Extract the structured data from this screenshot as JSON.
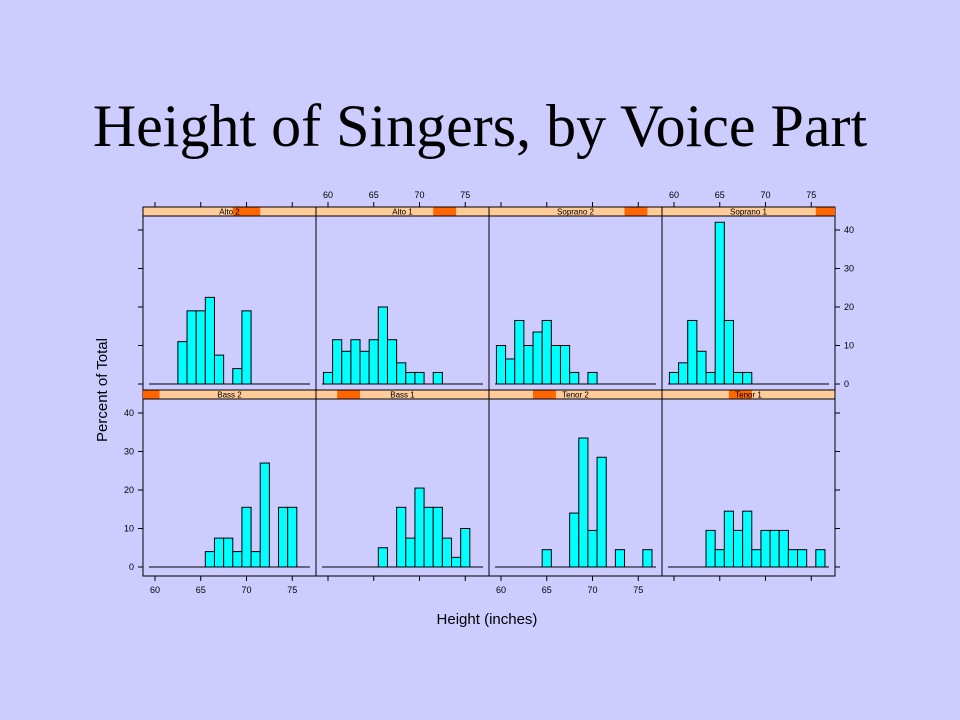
{
  "slide": {
    "title": "Height of Singers, by Voice Part"
  },
  "colors": {
    "background": "#ccccff",
    "bar_fill": "#00ffff",
    "strip_bg": "#ffcc99",
    "strip_marker": "#ff6600"
  },
  "chart_data": {
    "type": "bar",
    "layout": "trellis 4x2 histograms",
    "xlabel": "Height (inches)",
    "ylabel": "Percent of Total",
    "xlim": [
      59,
      77
    ],
    "ylim": [
      0,
      44
    ],
    "xticks": [
      60,
      65,
      70,
      75
    ],
    "yticks": [
      0,
      10,
      20,
      30,
      40
    ],
    "bin_width": 1,
    "panels": [
      {
        "name": "Alto 2",
        "strip_range": [
          68.5,
          71.5
        ],
        "bins": [
          {
            "x": 63,
            "y": 11
          },
          {
            "x": 64,
            "y": 19
          },
          {
            "x": 65,
            "y": 19
          },
          {
            "x": 66,
            "y": 22.5
          },
          {
            "x": 67,
            "y": 7.5
          },
          {
            "x": 69,
            "y": 4
          },
          {
            "x": 70,
            "y": 19
          }
        ]
      },
      {
        "name": "Alto 1",
        "strip_range": [
          71.5,
          74
        ],
        "bins": [
          {
            "x": 60,
            "y": 3
          },
          {
            "x": 61,
            "y": 11.5
          },
          {
            "x": 62,
            "y": 8.5
          },
          {
            "x": 63,
            "y": 11.5
          },
          {
            "x": 64,
            "y": 8.5
          },
          {
            "x": 65,
            "y": 11.5
          },
          {
            "x": 66,
            "y": 20
          },
          {
            "x": 67,
            "y": 11.5
          },
          {
            "x": 68,
            "y": 5.5
          },
          {
            "x": 69,
            "y": 3
          },
          {
            "x": 70,
            "y": 3
          },
          {
            "x": 72,
            "y": 3
          }
        ]
      },
      {
        "name": "Soprano 2",
        "strip_range": [
          73.5,
          76
        ],
        "bins": [
          {
            "x": 60,
            "y": 10
          },
          {
            "x": 61,
            "y": 6.5
          },
          {
            "x": 62,
            "y": 16.5
          },
          {
            "x": 63,
            "y": 10
          },
          {
            "x": 64,
            "y": 13.5
          },
          {
            "x": 65,
            "y": 16.5
          },
          {
            "x": 66,
            "y": 10
          },
          {
            "x": 67,
            "y": 10
          },
          {
            "x": 68,
            "y": 3
          },
          {
            "x": 70,
            "y": 3
          }
        ]
      },
      {
        "name": "Soprano 1",
        "strip_range": [
          75.5,
          78
        ],
        "bins": [
          {
            "x": 60,
            "y": 3
          },
          {
            "x": 61,
            "y": 5.5
          },
          {
            "x": 62,
            "y": 16.5
          },
          {
            "x": 63,
            "y": 8.5
          },
          {
            "x": 64,
            "y": 3
          },
          {
            "x": 65,
            "y": 42
          },
          {
            "x": 66,
            "y": 16.5
          },
          {
            "x": 67,
            "y": 3
          },
          {
            "x": 68,
            "y": 3
          }
        ]
      },
      {
        "name": "Bass 2",
        "strip_range": [
          58,
          60.5
        ],
        "bins": [
          {
            "x": 66,
            "y": 4
          },
          {
            "x": 67,
            "y": 7.5
          },
          {
            "x": 68,
            "y": 7.5
          },
          {
            "x": 69,
            "y": 4
          },
          {
            "x": 70,
            "y": 15.5
          },
          {
            "x": 71,
            "y": 4
          },
          {
            "x": 72,
            "y": 27
          },
          {
            "x": 74,
            "y": 15.5
          },
          {
            "x": 75,
            "y": 15.5
          }
        ]
      },
      {
        "name": "Bass 1",
        "strip_range": [
          61,
          63.5
        ],
        "bins": [
          {
            "x": 66,
            "y": 5
          },
          {
            "x": 68,
            "y": 15.5
          },
          {
            "x": 69,
            "y": 7.5
          },
          {
            "x": 70,
            "y": 20.5
          },
          {
            "x": 71,
            "y": 15.5
          },
          {
            "x": 72,
            "y": 15.5
          },
          {
            "x": 73,
            "y": 7.5
          },
          {
            "x": 74,
            "y": 2.5
          },
          {
            "x": 75,
            "y": 10
          }
        ]
      },
      {
        "name": "Tenor 2",
        "strip_range": [
          63.5,
          66
        ],
        "bins": [
          {
            "x": 65,
            "y": 4.5
          },
          {
            "x": 68,
            "y": 14
          },
          {
            "x": 69,
            "y": 33.5
          },
          {
            "x": 70,
            "y": 9.5
          },
          {
            "x": 71,
            "y": 28.5
          },
          {
            "x": 73,
            "y": 4.5
          },
          {
            "x": 76,
            "y": 4.5
          }
        ]
      },
      {
        "name": "Tenor 1",
        "strip_range": [
          66,
          68.5
        ],
        "bins": [
          {
            "x": 64,
            "y": 9.5
          },
          {
            "x": 65,
            "y": 4.5
          },
          {
            "x": 66,
            "y": 14.5
          },
          {
            "x": 67,
            "y": 9.5
          },
          {
            "x": 68,
            "y": 14.5
          },
          {
            "x": 69,
            "y": 4.5
          },
          {
            "x": 70,
            "y": 9.5
          },
          {
            "x": 71,
            "y": 9.5
          },
          {
            "x": 72,
            "y": 9.5
          },
          {
            "x": 73,
            "y": 4.5
          },
          {
            "x": 74,
            "y": 4.5
          },
          {
            "x": 76,
            "y": 4.5
          }
        ]
      }
    ]
  }
}
